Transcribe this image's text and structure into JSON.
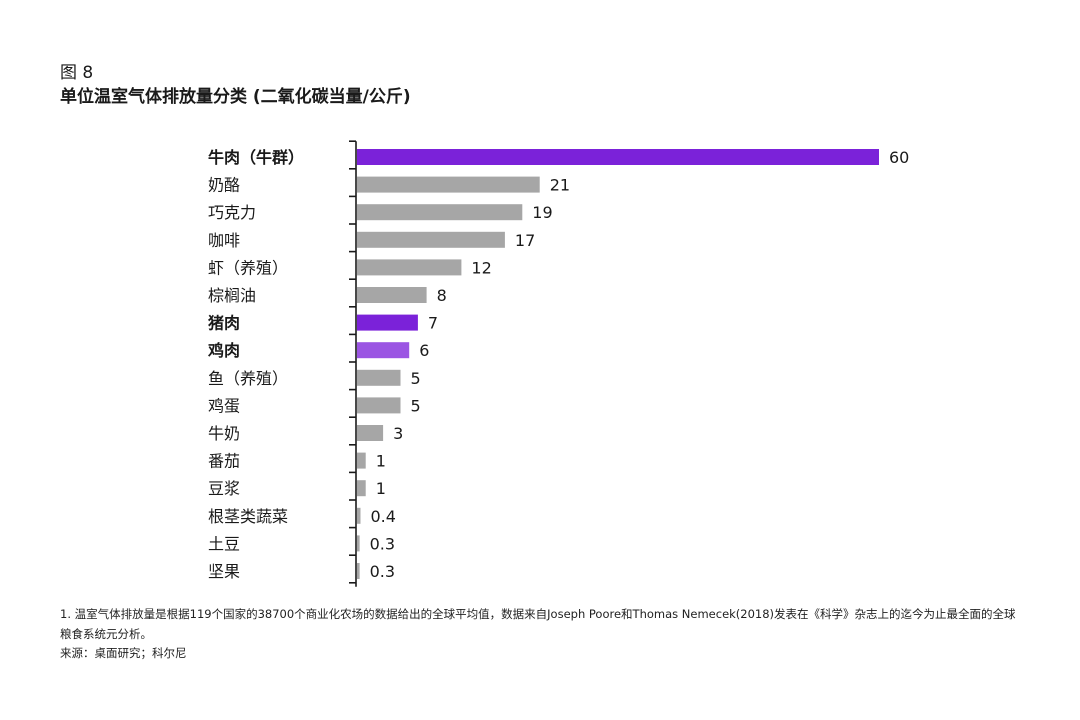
{
  "figure": {
    "label": "图 8",
    "title": "单位温室气体排放量分类 (二氧化碳当量/公斤)"
  },
  "chart_data": {
    "type": "bar",
    "orientation": "horizontal",
    "categories": [
      "牛肉（牛群）",
      "奶酪",
      "巧克力",
      "咖啡",
      "虾（养殖）",
      "棕榈油",
      "猪肉",
      "鸡肉",
      "鱼（养殖）",
      "鸡蛋",
      "牛奶",
      "番茄",
      "豆浆",
      "根茎类蔬菜",
      "土豆",
      "坚果"
    ],
    "values": [
      60,
      21,
      19,
      17,
      12,
      8,
      7,
      6,
      5,
      5,
      3,
      1,
      1,
      0.4,
      0.3,
      0.3
    ],
    "value_labels": [
      "60",
      "21",
      "19",
      "17",
      "12",
      "8",
      "7",
      "6",
      "5",
      "5",
      "3",
      "1",
      "1",
      "0.4",
      "0.3",
      "0.3"
    ],
    "highlighted": [
      "牛肉（牛群）",
      "猪肉",
      "鸡肉"
    ],
    "colors": {
      "牛肉（牛群）": "#7B22D9",
      "猪肉": "#7B22D9",
      "鸡肉": "#9B55E3",
      "default": "#A6A6A6"
    },
    "xlim": [
      0,
      60
    ],
    "title": "单位温室气体排放量分类 (二氧化碳当量/公斤)",
    "xlabel": "",
    "ylabel": "",
    "grid": false,
    "legend": "none"
  },
  "footnote": "1. 温室气体排放量是根据119个国家的38700个商业化农场的数据给出的全球平均值，数据来自Joseph Poore和Thomas Nemecek(2018)发表在《科学》杂志上的迄今为止最全面的全球粮食系统元分析。",
  "source": "来源：桌面研究；科尔尼"
}
